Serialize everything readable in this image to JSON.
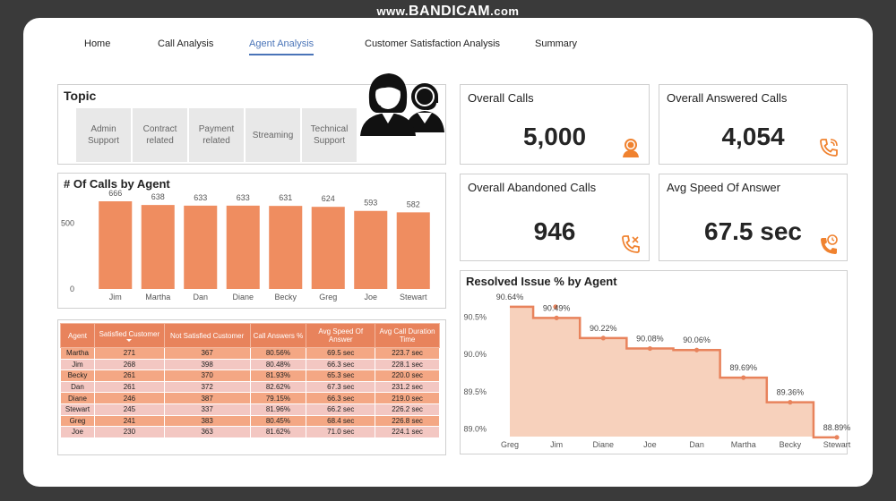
{
  "watermark": {
    "prefix": "www.",
    "brand": "BANDICAM",
    "suffix": ".com"
  },
  "nav": {
    "tabs": [
      {
        "label": "Home"
      },
      {
        "label": "Call Analysis"
      },
      {
        "label": "Agent Analysis",
        "active": true
      },
      {
        "label": "Customer Satisfaction Analysis"
      },
      {
        "label": "Summary"
      }
    ]
  },
  "topic": {
    "title": "Topic",
    "options": [
      "Admin Support",
      "Contract related",
      "Payment related",
      "Streaming",
      "Technical Support"
    ]
  },
  "kpis": {
    "overall_calls": {
      "title": "Overall Calls",
      "value": "5,000",
      "icon": "headset-agent-icon"
    },
    "answered_calls": {
      "title": "Overall Answered Calls",
      "value": "4,054",
      "icon": "phone-incoming-icon"
    },
    "abandoned_calls": {
      "title": "Overall Abandoned Calls",
      "value": "946",
      "icon": "phone-missed-icon"
    },
    "avg_speed": {
      "title": "Avg Speed Of Answer",
      "value": "67.5 sec",
      "icon": "phone-clock-icon"
    }
  },
  "colors": {
    "accent": "#e8835c",
    "bar": "#ef8d60",
    "area": "#f6c9b0",
    "line": "#e8835c",
    "nav_active": "#4a74b8"
  },
  "chart_data": [
    {
      "type": "bar",
      "title": "# Of Calls by Agent",
      "categories": [
        "Jim",
        "Martha",
        "Dan",
        "Diane",
        "Becky",
        "Greg",
        "Joe",
        "Stewart"
      ],
      "values": [
        666,
        638,
        633,
        633,
        631,
        624,
        593,
        582
      ],
      "yticks": [
        "0",
        "500"
      ],
      "ylim": [
        0,
        700
      ],
      "grid": false
    },
    {
      "type": "area",
      "title": "Resolved Issue % by Agent",
      "categories": [
        "Greg",
        "Jim",
        "Diane",
        "Joe",
        "Dan",
        "Martha",
        "Becky",
        "Stewart"
      ],
      "values": [
        90.64,
        90.49,
        90.22,
        90.08,
        90.06,
        89.69,
        89.36,
        88.89
      ],
      "labels": [
        "90.64%",
        "90.49%",
        "90.22%",
        "90.08%",
        "90.06%",
        "89.69%",
        "89.36%",
        "88.89%"
      ],
      "yticks": [
        "89.0%",
        "89.5%",
        "90.0%",
        "90.5%"
      ],
      "ylim": [
        88.9,
        90.65
      ],
      "step": true
    }
  ],
  "table": {
    "headers": [
      "Agent",
      "Satisfied Customer",
      "Not Satisfied Customer",
      "Call Answers %",
      "Avg Speed Of Answer",
      "Avg Call Duration Time"
    ],
    "rows": [
      [
        "Martha",
        "271",
        "367",
        "80.56%",
        "69.5 sec",
        "223.7 sec"
      ],
      [
        "Jim",
        "268",
        "398",
        "80.48%",
        "66.3 sec",
        "228.1 sec"
      ],
      [
        "Becky",
        "261",
        "370",
        "81.93%",
        "65.3 sec",
        "220.0 sec"
      ],
      [
        "Dan",
        "261",
        "372",
        "82.62%",
        "67.3 sec",
        "231.2 sec"
      ],
      [
        "Diane",
        "246",
        "387",
        "79.15%",
        "66.3 sec",
        "219.0 sec"
      ],
      [
        "Stewart",
        "245",
        "337",
        "81.96%",
        "66.2 sec",
        "226.2 sec"
      ],
      [
        "Greg",
        "241",
        "383",
        "80.45%",
        "68.4 sec",
        "226.8 sec"
      ],
      [
        "Joe",
        "230",
        "363",
        "81.62%",
        "71.0 sec",
        "224.1 sec"
      ]
    ]
  }
}
